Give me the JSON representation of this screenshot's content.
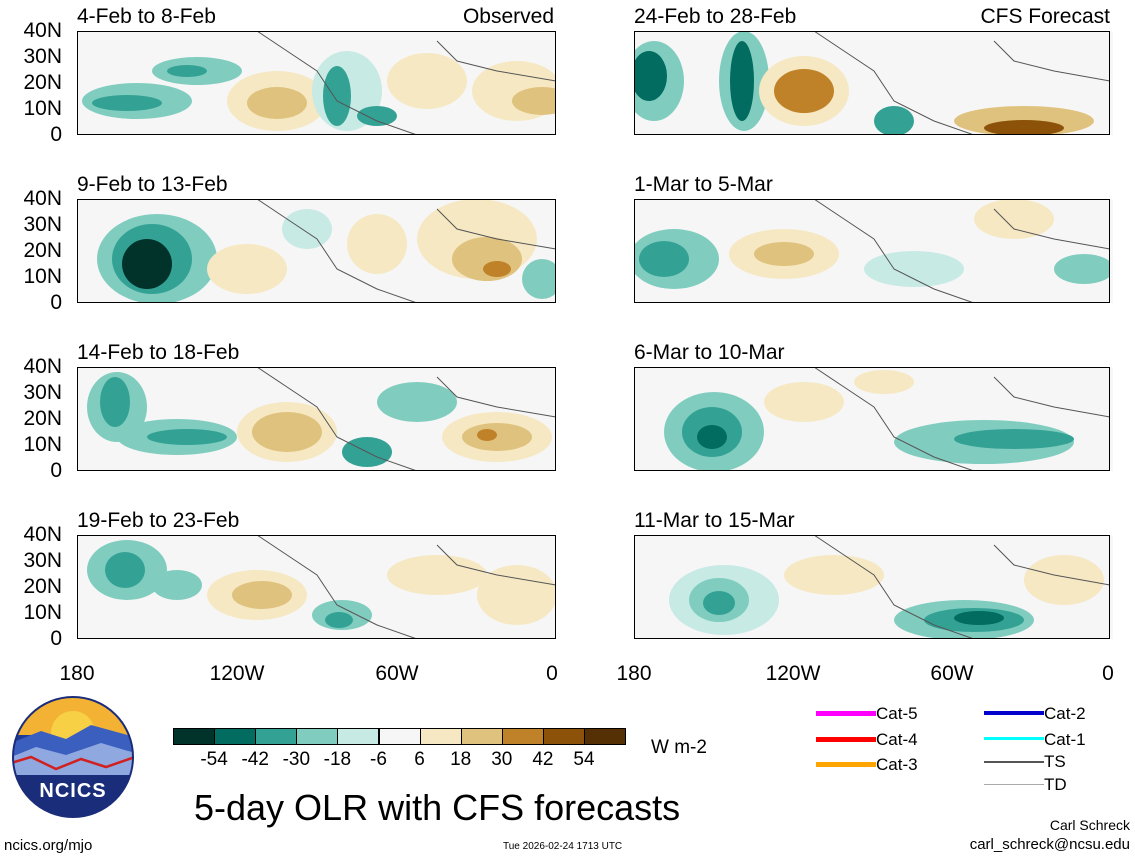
{
  "panels_left": [
    {
      "title": "4-Feb to 8-Feb",
      "tag": "Observed"
    },
    {
      "title": "9-Feb to 13-Feb",
      "tag": ""
    },
    {
      "title": "14-Feb to 18-Feb",
      "tag": ""
    },
    {
      "title": "19-Feb to 23-Feb",
      "tag": ""
    }
  ],
  "panels_right": [
    {
      "title": "24-Feb to 28-Feb",
      "tag": "CFS Forecast"
    },
    {
      "title": "1-Mar to 5-Mar",
      "tag": ""
    },
    {
      "title": "6-Mar to 10-Mar",
      "tag": ""
    },
    {
      "title": "11-Mar to 15-Mar",
      "tag": ""
    }
  ],
  "lat_labels": [
    "40N",
    "30N",
    "20N",
    "10N",
    "0"
  ],
  "lon_labels": [
    "180",
    "120W",
    "60W",
    "0"
  ],
  "colorbar": {
    "colors": [
      "#01332b",
      "#016c5f",
      "#33a295",
      "#80cdc0",
      "#c7eae5",
      "#f6f6f6",
      "#f6e8c3",
      "#dfc27d",
      "#c08229",
      "#8c520a",
      "#553005"
    ],
    "labels": [
      "-54",
      "-42",
      "-30",
      "-18",
      "-6",
      "6",
      "18",
      "30",
      "42",
      "54"
    ],
    "units": "W m-2"
  },
  "logo_text": "NCICS",
  "main_title": "5-day OLR with CFS forecasts",
  "legend": [
    {
      "label": "Cat-5",
      "color": "#ff00ff"
    },
    {
      "label": "Cat-4",
      "color": "#ff0000"
    },
    {
      "label": "Cat-3",
      "color": "#ffa500"
    },
    {
      "label": "Cat-2",
      "color": "#0000cc"
    },
    {
      "label": "Cat-1",
      "color": "#00ffff"
    },
    {
      "label": "TS",
      "color": "#555555"
    },
    {
      "label": "TD",
      "color": "#aaaaaa"
    }
  ],
  "footer": {
    "left": "ncics.org/mjo",
    "center": "Tue 2026-02-24 1713 UTC",
    "author": "Carl Schreck",
    "email": "carl_schreck@ncsu.edu"
  }
}
